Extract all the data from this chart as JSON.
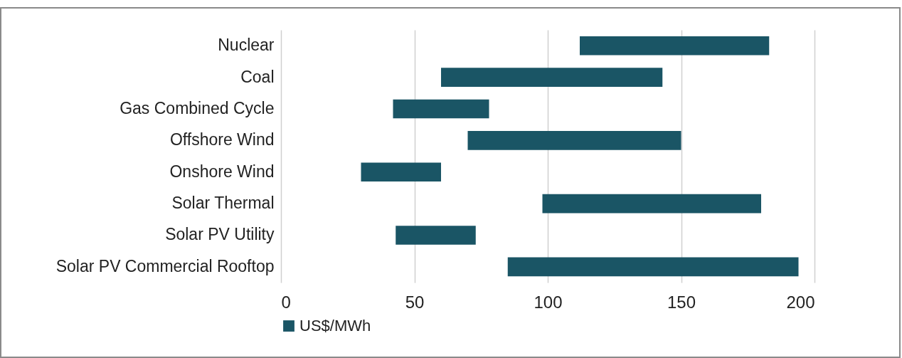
{
  "chart_data": {
    "type": "bar",
    "orientation": "horizontal",
    "categories": [
      "Nuclear",
      "Coal",
      "Gas Combined Cycle",
      "Offshore Wind",
      "Onshore Wind",
      "Solar Thermal",
      "Solar PV Utility",
      "Solar PV Commercial Rooftop"
    ],
    "series": [
      {
        "name": "US$/MWh",
        "color": "#1a5565",
        "base": [
          112,
          60,
          42,
          70,
          30,
          98,
          43,
          85
        ],
        "values": [
          71,
          83,
          36,
          80,
          30,
          82,
          30,
          109
        ]
      }
    ],
    "xlim": [
      0,
      200
    ],
    "xticks": [
      0,
      50,
      100,
      150,
      200
    ],
    "grid": "x",
    "legend": "bottom"
  }
}
